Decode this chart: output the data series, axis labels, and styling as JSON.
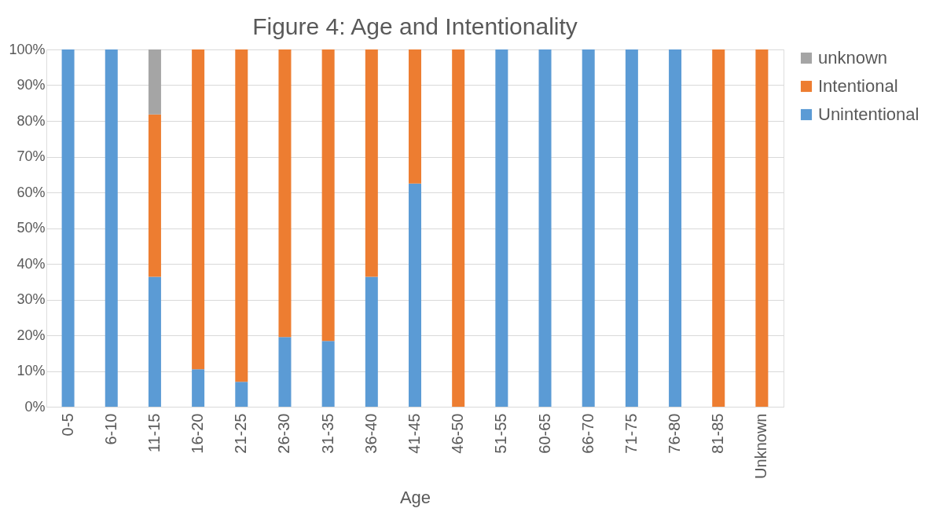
{
  "chart_data": {
    "type": "bar",
    "title": "Figure 4: Age and Intentionality",
    "xlabel": "Age",
    "stacked": true,
    "categories": [
      "0-5",
      "6-10",
      "11-15",
      "16-20",
      "21-25",
      "26-30",
      "31-35",
      "36-40",
      "41-45",
      "46-50",
      "51-55",
      "60-65",
      "66-70",
      "71-75",
      "76-80",
      "81-85",
      "Unknown"
    ],
    "series": [
      {
        "name": "Unintentional",
        "color": "#5b9bd5",
        "values": [
          100,
          100,
          36.4,
          10.5,
          7,
          19.5,
          18.4,
          36.4,
          62.5,
          null,
          100,
          100,
          100,
          100,
          100,
          null,
          null
        ]
      },
      {
        "name": "Intentional",
        "color": "#ed7d31",
        "values": [
          null,
          null,
          45.4,
          89.5,
          93,
          80.5,
          81.6,
          63.6,
          37.5,
          100,
          null,
          null,
          null,
          null,
          null,
          100,
          100
        ]
      },
      {
        "name": "unknown",
        "color": "#a5a5a5",
        "values": [
          null,
          null,
          18.2,
          null,
          null,
          null,
          null,
          null,
          null,
          null,
          null,
          null,
          null,
          null,
          null,
          null,
          null
        ]
      }
    ],
    "ylim": [
      0,
      100
    ],
    "yticks": [
      {
        "value": 0,
        "label": "0%"
      },
      {
        "value": 10,
        "label": "10%"
      },
      {
        "value": 20,
        "label": "20%"
      },
      {
        "value": 30,
        "label": "30%"
      },
      {
        "value": 40,
        "label": "40%"
      },
      {
        "value": 50,
        "label": "50%"
      },
      {
        "value": 60,
        "label": "60%"
      },
      {
        "value": 70,
        "label": "70%"
      },
      {
        "value": 80,
        "label": "80%"
      },
      {
        "value": 90,
        "label": "90%"
      },
      {
        "value": 100,
        "label": "100%"
      }
    ],
    "grid": "y",
    "legend": "right"
  }
}
